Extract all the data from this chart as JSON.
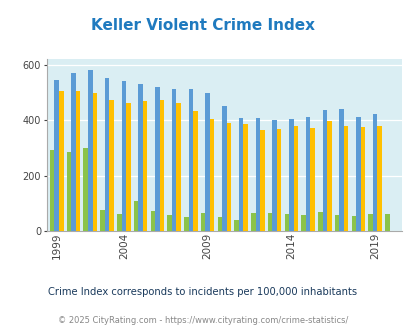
{
  "title": "Keller Violent Crime Index",
  "years": [
    1999,
    2000,
    2001,
    2002,
    2003,
    2004,
    2005,
    2006,
    2007,
    2008,
    2009,
    2010,
    2011,
    2012,
    2013,
    2014,
    2015,
    2016,
    2017,
    2018,
    2019,
    2020
  ],
  "keller": [
    293,
    285,
    0,
    300,
    75,
    62,
    107,
    73,
    57,
    50,
    65,
    50,
    40,
    65,
    65,
    62,
    58,
    67,
    58,
    55,
    60,
    60
  ],
  "texas": [
    547,
    570,
    0,
    580,
    553,
    543,
    530,
    520,
    513,
    513,
    497,
    453,
    410,
    410,
    402,
    403,
    412,
    437,
    442,
    412,
    421,
    0
  ],
  "national": [
    507,
    507,
    0,
    499,
    475,
    463,
    470,
    474,
    463,
    432,
    406,
    390,
    387,
    365,
    370,
    380,
    373,
    398,
    380,
    374,
    379,
    0
  ],
  "xtick_labels": [
    "1999",
    "2004",
    "2009",
    "2014",
    "2019"
  ],
  "xtick_years": [
    1999,
    2004,
    2009,
    2014,
    2019
  ],
  "ylim": [
    0,
    620
  ],
  "yticks": [
    0,
    200,
    400,
    600
  ],
  "color_keller": "#8bc34a",
  "color_texas": "#5b9bd5",
  "color_national": "#ffc000",
  "plot_bg": "#daeef3",
  "legend_note": "Crime Index corresponds to incidents per 100,000 inhabitants",
  "footer": "© 2025 CityRating.com - https://www.cityrating.com/crime-statistics/",
  "title_color": "#1f7abf",
  "note_color": "#1a3a5c",
  "footer_color": "#888888"
}
